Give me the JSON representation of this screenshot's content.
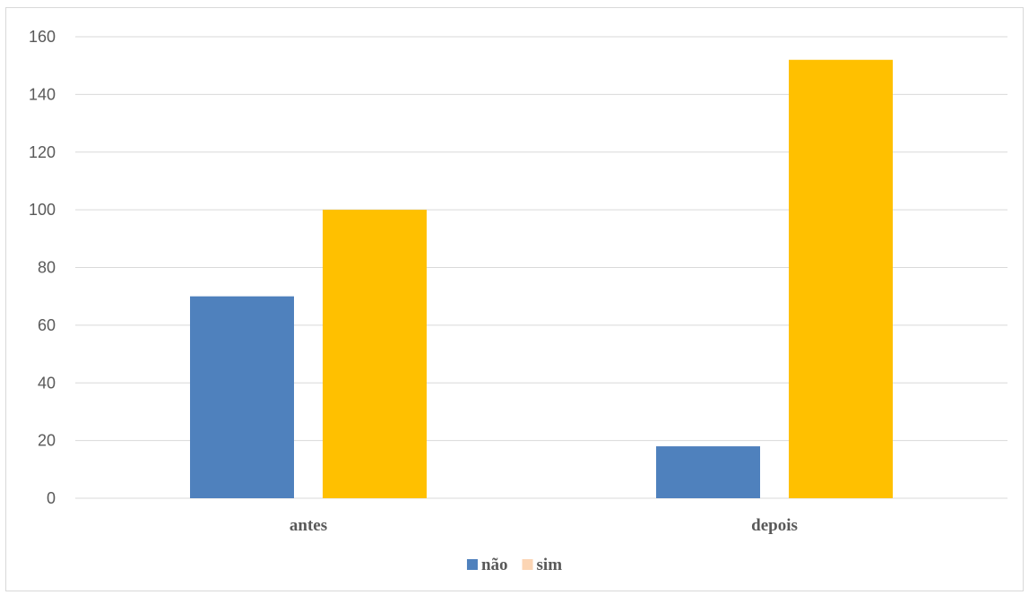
{
  "chart_data": {
    "type": "bar",
    "categories": [
      "antes",
      "depois"
    ],
    "series": [
      {
        "name": "não",
        "values": [
          70,
          18
        ],
        "color": "#4f81bd"
      },
      {
        "name": "sim",
        "values": [
          100,
          152
        ],
        "color": "#ffc000"
      }
    ],
    "legend_swatch_colors": [
      "#4f81bd",
      "#fcd5b4"
    ],
    "yticks": [
      0,
      20,
      40,
      60,
      80,
      100,
      120,
      140,
      160
    ],
    "ylim": [
      0,
      160
    ],
    "grid": true,
    "legend_position": "bottom"
  }
}
